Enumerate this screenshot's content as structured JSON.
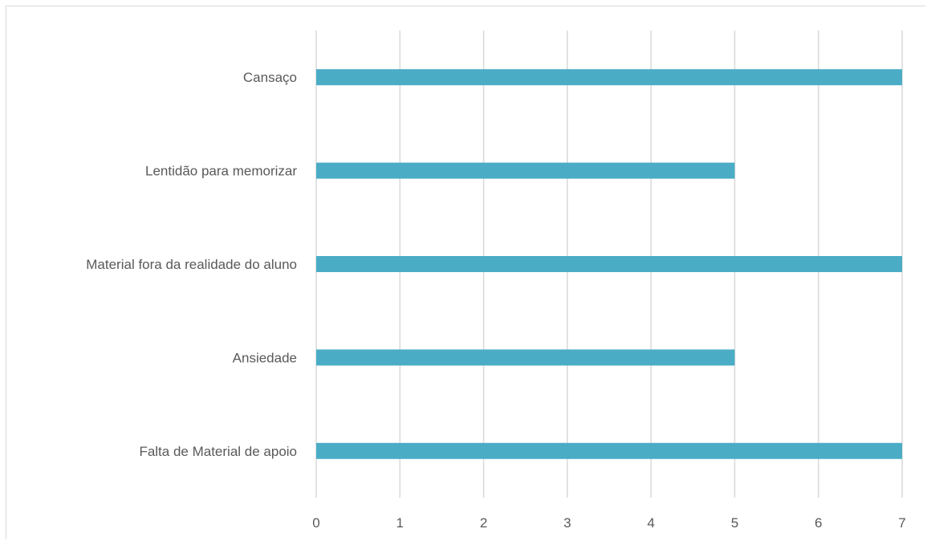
{
  "chart_data": {
    "type": "bar",
    "orientation": "horizontal",
    "categories": [
      "Falta de Material de apoio",
      "Ansiedade",
      "Material fora da realidade do aluno",
      "Lentidão para memorizar",
      "Cansaço"
    ],
    "values": [
      7,
      5,
      7,
      5,
      7
    ],
    "xlim": [
      0,
      7
    ],
    "xticks": [
      "0",
      "1",
      "2",
      "3",
      "4",
      "5",
      "6",
      "7"
    ],
    "grid": "vertical",
    "legend": "none",
    "bar_color": "#4bacc6",
    "title": "",
    "xlabel": "",
    "ylabel": ""
  }
}
